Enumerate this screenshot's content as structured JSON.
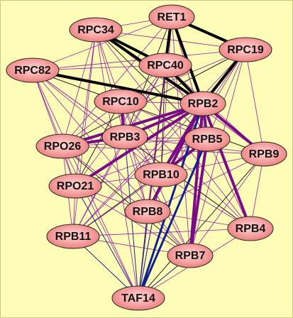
{
  "nodes": [
    {
      "label": "RET1"
    },
    {
      "label": "RPC34"
    },
    {
      "label": "RPC19"
    },
    {
      "label": "RPC82"
    },
    {
      "label": "RPC40"
    },
    {
      "label": "RPC10"
    },
    {
      "label": "RPB2"
    },
    {
      "label": "RPB3"
    },
    {
      "label": "RPB5"
    },
    {
      "label": "RPO26"
    },
    {
      "label": "RPB9"
    },
    {
      "label": "RPB10"
    },
    {
      "label": "RPO21"
    },
    {
      "label": "RPB8"
    },
    {
      "label": "RPB4"
    },
    {
      "label": "RPB11"
    },
    {
      "label": "RPB7"
    },
    {
      "label": "TAF14"
    }
  ]
}
